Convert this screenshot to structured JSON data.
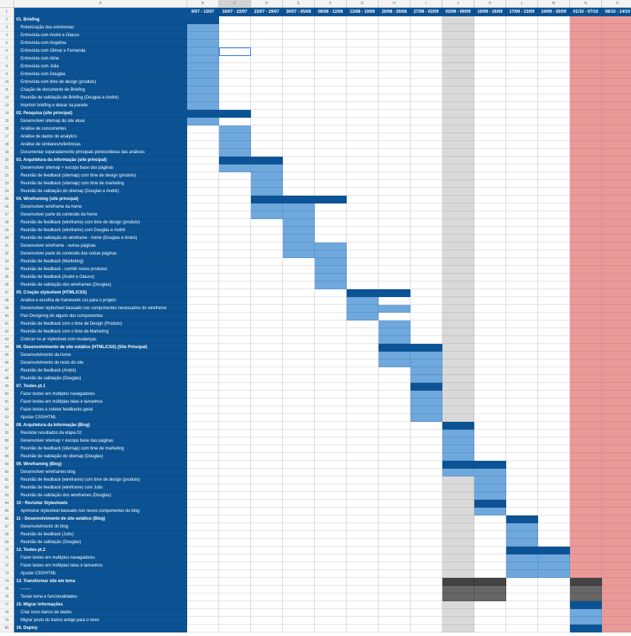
{
  "columns": [
    "A",
    "B",
    "C",
    "D",
    "E",
    "F",
    "G",
    "H",
    "I",
    "J",
    "K",
    "L",
    "M",
    "N",
    "O"
  ],
  "header_row_number": "1",
  "weeks": [
    "9/07 - 15/07",
    "16/07 - 22/07",
    "23/07 - 29/07",
    "30/07 - 05/08",
    "06/08 - 12/08",
    "13/08 - 19/08",
    "20/08 - 26/08",
    "27/08 - 02/09",
    "03/09 - 09/09",
    "10/09 - 16/09",
    "17/09 - 23/09",
    "24/09 - 30/09",
    "01/10 - 07/10",
    "08/10 - 14/10"
  ],
  "rows": [
    {
      "num": "2",
      "label": "01. Briefing",
      "phase": true
    },
    {
      "num": "3",
      "label": "Roteirização das entrevistas"
    },
    {
      "num": "4",
      "label": "Entrevista com André e Glauco"
    },
    {
      "num": "5",
      "label": "Entrevista com Angelina"
    },
    {
      "num": "6",
      "label": "Entrevista com Gilmar e Fernanda"
    },
    {
      "num": "7",
      "label": "Entrevista com Aline"
    },
    {
      "num": "8",
      "label": "Entrevista com Júlia"
    },
    {
      "num": "9",
      "label": "Entrevista com Douglas"
    },
    {
      "num": "10",
      "label": "Entrevista com time de design (produto)"
    },
    {
      "num": "11",
      "label": "Criação de documento de Briefing"
    },
    {
      "num": "12",
      "label": "Reunião de validação de Briefing (Douglas e André)"
    },
    {
      "num": "13",
      "label": "Imprimir briefing e deixar na parede"
    },
    {
      "num": "14",
      "label": "02. Pesquisa (site principal)",
      "phase": true
    },
    {
      "num": "15",
      "label": "Desenvolver sitemap do site atual"
    },
    {
      "num": "16",
      "label": "Análise de concorrentes"
    },
    {
      "num": "17",
      "label": "Análise de dados do analytics"
    },
    {
      "num": "18",
      "label": "Análise de similares/referências"
    },
    {
      "num": "19",
      "label": "Documentar separadamente principais pontos/ideias das análises"
    },
    {
      "num": "20",
      "label": "03. Arquitetura da informação (site principal)",
      "phase": true
    },
    {
      "num": "21",
      "label": "Desenvolver sitemap + escopo base das páginas"
    },
    {
      "num": "22",
      "label": "Reunião de feedback (sitemap) com time de design (produto)"
    },
    {
      "num": "23",
      "label": "Reunião de feedback (sitemap) com time de marketing"
    },
    {
      "num": "24",
      "label": "Reunião de validação do sitemap (Douglas e André)"
    },
    {
      "num": "25",
      "label": "04. Wireframing (site principal)",
      "phase": true
    },
    {
      "num": "26",
      "label": "Desenvolver wireframe da home"
    },
    {
      "num": "27",
      "label": "Desenvolver parte do conteúdo da home"
    },
    {
      "num": "28",
      "label": "Reunião de feedback (wireframe) com time de design (produto)"
    },
    {
      "num": "29",
      "label": "Reunião de feedback (wireframe) com Douglas e André"
    },
    {
      "num": "30",
      "label": "Reunião de validação do wireframe - home (Douglas e André)"
    },
    {
      "num": "31",
      "label": "Desenvolver wireframe - outras páginas"
    },
    {
      "num": "32",
      "label": "Desenvolver parte do conteúdo das outras páginas"
    },
    {
      "num": "33",
      "label": "Reunião de feedback (Marketing)"
    },
    {
      "num": "34",
      "label": "Reunião de feedback - comitê novos produtos"
    },
    {
      "num": "35",
      "label": "Reunião de feedback (André e Glauco)"
    },
    {
      "num": "36",
      "label": "Reunião de validação dos wireframes (Douglas)"
    },
    {
      "num": "37",
      "label": "05. Criação stylesheet (HTML/CSS)",
      "phase": true
    },
    {
      "num": "38",
      "label": "Análise e escolha de framework css para o projeto"
    },
    {
      "num": "39",
      "label": "Desenvolver stylesheet baseado nos componentes necessarios do wireframe"
    },
    {
      "num": "40",
      "label": "Pair-Designing de alguns dos componentes"
    },
    {
      "num": "41",
      "label": "Reunião de feedback com o time de Design (Produto)"
    },
    {
      "num": "42",
      "label": "Reunião de feedback com o time de Marketing"
    },
    {
      "num": "43",
      "label": "Colocar no ar stylesheet com mudanças"
    },
    {
      "num": "44",
      "label": "06. Desenvolvimento de site estático (HTML/CSS) (Site Principal)",
      "phase": true
    },
    {
      "num": "45",
      "label": "Desenvolvimento da home"
    },
    {
      "num": "46",
      "label": "Desenvolvimento do resto do site"
    },
    {
      "num": "47",
      "label": "Reunião de feedback (André)"
    },
    {
      "num": "48",
      "label": "Reunião de validação (Douglas)"
    },
    {
      "num": "49",
      "label": "07. Testes pt.1",
      "phase": true
    },
    {
      "num": "50",
      "label": "Fazer testes em multiplos navegadores"
    },
    {
      "num": "51",
      "label": "Fazer testes em múltiplas telas e tamanhos"
    },
    {
      "num": "52",
      "label": "Fazer testes e coletar feedbacks geral"
    },
    {
      "num": "53",
      "label": "Ajustar CSS/HTML"
    },
    {
      "num": "54",
      "label": "08. Arquitetura da Informação (Blog)",
      "phase": true
    },
    {
      "num": "55",
      "label": "Revisitar resultados da etapa 02"
    },
    {
      "num": "56",
      "label": "Desenvolver sitemap + escopo base das páginas"
    },
    {
      "num": "57",
      "label": "Reunião de feedback (sitemap) com time de marketing"
    },
    {
      "num": "58",
      "label": "Reunião de validação do sitemap (Douglas)"
    },
    {
      "num": "59",
      "label": "09. Wireframing (Blog)",
      "phase": true
    },
    {
      "num": "60",
      "label": "Desenvolver wireframes blog"
    },
    {
      "num": "61",
      "label": "Reunião de feedback (wireframe) com time de design (produto)"
    },
    {
      "num": "62",
      "label": "Reunião de feedback (wireframe) com Jubs"
    },
    {
      "num": "63",
      "label": "Reunião de validação dos wireframes (Douglas)"
    },
    {
      "num": "64",
      "label": "10 - Revisitar Stylesheets",
      "phase": true
    },
    {
      "num": "65",
      "label": "Aprimorar stylesheet baseado nos novos componentes do blog"
    },
    {
      "num": "66",
      "label": "11 - Desenvolvimento de site estático (Blog)",
      "phase": true
    },
    {
      "num": "67",
      "label": "Desenvolvimento do blog"
    },
    {
      "num": "68",
      "label": "Reunião de feedback (Jubs)"
    },
    {
      "num": "69",
      "label": "Reunião de validação (Douglas)"
    },
    {
      "num": "70",
      "label": "12. Testes pt.2",
      "phase": true
    },
    {
      "num": "71",
      "label": "Fazer testes em multiplos navegadores"
    },
    {
      "num": "72",
      "label": "Fazer testes em múltiplas telas e tamanhos"
    },
    {
      "num": "73",
      "label": "Ajustar CSS/HTML"
    },
    {
      "num": "74",
      "label": "13. Transformar site em tema",
      "phase": true
    },
    {
      "num": "75",
      "label": "-------"
    },
    {
      "num": "76",
      "label": "Testar tema e funcionalidades"
    },
    {
      "num": "77",
      "label": "15. Migrar informações",
      "phase": true
    },
    {
      "num": "78",
      "label": "Criar novo banco de dados"
    },
    {
      "num": "79",
      "label": "Migrar posts do banco antigo para o novo"
    },
    {
      "num": "80",
      "label": "16. Deploy",
      "phase": true
    }
  ],
  "bars": [
    {
      "r": 2,
      "c": 0,
      "s": "dark"
    },
    {
      "r": 3,
      "c": 0,
      "s": "light"
    },
    {
      "r": 4,
      "c": 0,
      "s": "light"
    },
    {
      "r": 5,
      "c": 0,
      "s": "light"
    },
    {
      "r": 6,
      "c": 0,
      "s": "light"
    },
    {
      "r": 7,
      "c": 0,
      "s": "light"
    },
    {
      "r": 8,
      "c": 0,
      "s": "light"
    },
    {
      "r": 9,
      "c": 0,
      "s": "light"
    },
    {
      "r": 10,
      "c": 0,
      "s": "light"
    },
    {
      "r": 11,
      "c": 0,
      "s": "light"
    },
    {
      "r": 12,
      "c": 0,
      "s": "light"
    },
    {
      "r": 13,
      "c": 0,
      "s": "light"
    },
    {
      "r": 14,
      "c": 0,
      "s": "dark"
    },
    {
      "r": 14,
      "c": 1,
      "s": "dark"
    },
    {
      "r": 15,
      "c": 0,
      "s": "light"
    },
    {
      "r": 16,
      "c": 1,
      "s": "light"
    },
    {
      "r": 17,
      "c": 1,
      "s": "light"
    },
    {
      "r": 18,
      "c": 1,
      "s": "light"
    },
    {
      "r": 19,
      "c": 1,
      "s": "light"
    },
    {
      "r": 20,
      "c": 1,
      "s": "dark"
    },
    {
      "r": 20,
      "c": 2,
      "s": "dark"
    },
    {
      "r": 21,
      "c": 1,
      "s": "light"
    },
    {
      "r": 21,
      "c": 2,
      "s": "light"
    },
    {
      "r": 22,
      "c": 2,
      "s": "light"
    },
    {
      "r": 23,
      "c": 2,
      "s": "light"
    },
    {
      "r": 24,
      "c": 2,
      "s": "light"
    },
    {
      "r": 25,
      "c": 2,
      "s": "dark"
    },
    {
      "r": 25,
      "c": 3,
      "s": "dark"
    },
    {
      "r": 25,
      "c": 4,
      "s": "dark"
    },
    {
      "r": 26,
      "c": 2,
      "s": "light"
    },
    {
      "r": 26,
      "c": 3,
      "s": "light"
    },
    {
      "r": 27,
      "c": 2,
      "s": "light"
    },
    {
      "r": 27,
      "c": 3,
      "s": "light"
    },
    {
      "r": 28,
      "c": 3,
      "s": "light"
    },
    {
      "r": 29,
      "c": 3,
      "s": "light"
    },
    {
      "r": 30,
      "c": 3,
      "s": "light"
    },
    {
      "r": 31,
      "c": 3,
      "s": "light"
    },
    {
      "r": 31,
      "c": 4,
      "s": "light"
    },
    {
      "r": 32,
      "c": 3,
      "s": "light"
    },
    {
      "r": 32,
      "c": 4,
      "s": "light"
    },
    {
      "r": 33,
      "c": 4,
      "s": "light"
    },
    {
      "r": 34,
      "c": 4,
      "s": "light"
    },
    {
      "r": 35,
      "c": 4,
      "s": "light"
    },
    {
      "r": 36,
      "c": 4,
      "s": "light"
    },
    {
      "r": 37,
      "c": 5,
      "s": "dark"
    },
    {
      "r": 37,
      "c": 6,
      "s": "dark"
    },
    {
      "r": 38,
      "c": 5,
      "s": "light"
    },
    {
      "r": 39,
      "c": 5,
      "s": "light"
    },
    {
      "r": 39,
      "c": 6,
      "s": "light"
    },
    {
      "r": 40,
      "c": 5,
      "s": "light"
    },
    {
      "r": 41,
      "c": 6,
      "s": "light"
    },
    {
      "r": 42,
      "c": 6,
      "s": "light"
    },
    {
      "r": 43,
      "c": 6,
      "s": "light"
    },
    {
      "r": 44,
      "c": 6,
      "s": "dark"
    },
    {
      "r": 44,
      "c": 7,
      "s": "dark"
    },
    {
      "r": 45,
      "c": 6,
      "s": "light"
    },
    {
      "r": 45,
      "c": 7,
      "s": "light"
    },
    {
      "r": 46,
      "c": 6,
      "s": "light"
    },
    {
      "r": 46,
      "c": 7,
      "s": "light"
    },
    {
      "r": 47,
      "c": 7,
      "s": "light"
    },
    {
      "r": 48,
      "c": 7,
      "s": "light"
    },
    {
      "r": 49,
      "c": 7,
      "s": "dark"
    },
    {
      "r": 50,
      "c": 7,
      "s": "light"
    },
    {
      "r": 51,
      "c": 7,
      "s": "light"
    },
    {
      "r": 52,
      "c": 7,
      "s": "light"
    },
    {
      "r": 53,
      "c": 7,
      "s": "light"
    },
    {
      "r": 54,
      "c": 8,
      "s": "dark"
    },
    {
      "r": 55,
      "c": 8,
      "s": "light"
    },
    {
      "r": 56,
      "c": 8,
      "s": "light"
    },
    {
      "r": 57,
      "c": 8,
      "s": "light"
    },
    {
      "r": 58,
      "c": 8,
      "s": "light"
    },
    {
      "r": 59,
      "c": 8,
      "s": "dark"
    },
    {
      "r": 59,
      "c": 9,
      "s": "dark"
    },
    {
      "r": 60,
      "c": 8,
      "s": "light"
    },
    {
      "r": 60,
      "c": 9,
      "s": "light"
    },
    {
      "r": 61,
      "c": 9,
      "s": "light"
    },
    {
      "r": 62,
      "c": 9,
      "s": "light"
    },
    {
      "r": 63,
      "c": 9,
      "s": "light"
    },
    {
      "r": 64,
      "c": 9,
      "s": "dark"
    },
    {
      "r": 65,
      "c": 9,
      "s": "light"
    },
    {
      "r": 66,
      "c": 10,
      "s": "dark"
    },
    {
      "r": 67,
      "c": 10,
      "s": "light"
    },
    {
      "r": 68,
      "c": 10,
      "s": "light"
    },
    {
      "r": 69,
      "c": 10,
      "s": "light"
    },
    {
      "r": 70,
      "c": 10,
      "s": "dark"
    },
    {
      "r": 70,
      "c": 11,
      "s": "dark"
    },
    {
      "r": 71,
      "c": 10,
      "s": "light"
    },
    {
      "r": 71,
      "c": 11,
      "s": "light"
    },
    {
      "r": 72,
      "c": 10,
      "s": "light"
    },
    {
      "r": 72,
      "c": 11,
      "s": "light"
    },
    {
      "r": 73,
      "c": 10,
      "s": "light"
    },
    {
      "r": 73,
      "c": 11,
      "s": "light"
    },
    {
      "r": 74,
      "c": 8,
      "s": "black"
    },
    {
      "r": 74,
      "c": 9,
      "s": "black"
    },
    {
      "r": 74,
      "c": 12,
      "s": "black"
    },
    {
      "r": 75,
      "c": 8,
      "s": "dgray"
    },
    {
      "r": 75,
      "c": 9,
      "s": "dgray"
    },
    {
      "r": 75,
      "c": 12,
      "s": "dgray"
    },
    {
      "r": 76,
      "c": 8,
      "s": "dgray"
    },
    {
      "r": 76,
      "c": 9,
      "s": "dgray"
    },
    {
      "r": 76,
      "c": 12,
      "s": "dgray"
    },
    {
      "r": 77,
      "c": 12,
      "s": "dark"
    },
    {
      "r": 78,
      "c": 12,
      "s": "light"
    },
    {
      "r": 79,
      "c": 12,
      "s": "light"
    },
    {
      "r": 80,
      "c": 12,
      "s": "dark"
    }
  ],
  "gray_column": 8,
  "red_columns": [
    12,
    13
  ],
  "selected_cell": {
    "r": 6,
    "c": 1
  },
  "selected_column": 2,
  "colors": {
    "phase": "#0b5394",
    "task": "#6fa8dc",
    "gray": "#d9d9d9",
    "red": "#ea9999",
    "black": "#434343"
  }
}
